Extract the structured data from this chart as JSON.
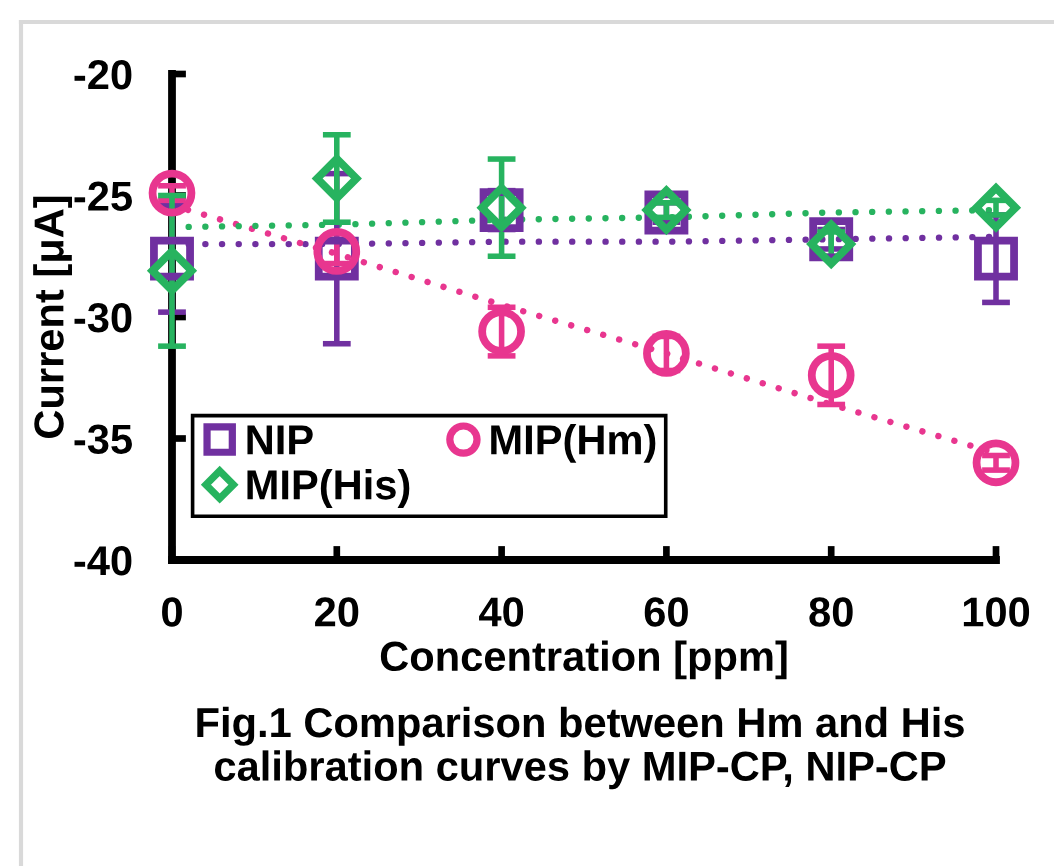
{
  "chart_data": {
    "type": "scatter",
    "xlabel": "Concentration [ppm]",
    "ylabel": "Current [μA]",
    "annotations": [
      "Fig.1 Comparison between Hm and His\ncalibration curves by MIP-CP, NIP-CP"
    ],
    "x": [
      0,
      20,
      40,
      60,
      80,
      100
    ],
    "xlim": [
      0,
      100
    ],
    "xticks": [
      0,
      20,
      40,
      60,
      80,
      100
    ],
    "ylim": [
      -40,
      -20
    ],
    "yticks": [
      -40,
      -35,
      -30,
      -25,
      -20
    ],
    "legend": "bottom left",
    "series": [
      {
        "name": "NIP",
        "color": "#7030a0",
        "marker": "square",
        "values": [
          -27.6,
          -27.6,
          -25.6,
          -25.7,
          -26.8,
          -27.6
        ],
        "errors": [
          2.2,
          3.5,
          0.8,
          0.4,
          0.4,
          1.8
        ]
      },
      {
        "name": "MIP(Hm)",
        "color": "#e8368f",
        "marker": "circle",
        "values": [
          -24.9,
          -27.3,
          -30.6,
          -31.5,
          -32.4,
          -36.0
        ],
        "errors": [
          0.3,
          0.5,
          1.0,
          0.7,
          1.2,
          0.3
        ]
      },
      {
        "name": "MIP(His)",
        "color": "#27b35f",
        "marker": "diamond",
        "values": [
          -28.1,
          -24.3,
          -25.5,
          -25.6,
          -27.0,
          -25.5
        ],
        "errors": [
          3.1,
          1.8,
          2.0,
          0.3,
          0.5,
          0.3
        ]
      },
      {
        "type": "line",
        "color": "#7030a0",
        "marker": "none",
        "line_style": "dotted",
        "values": [
          -27.0,
          -27.0,
          -26.9,
          -26.9,
          -26.8,
          -26.7
        ]
      },
      {
        "type": "line",
        "color": "#e8368f",
        "marker": "none",
        "line_style": "dotted",
        "values": [
          -25.4,
          -27.4,
          -29.5,
          -31.5,
          -33.6,
          -35.6
        ]
      },
      {
        "type": "line",
        "color": "#27b35f",
        "marker": "none",
        "line_style": "dotted",
        "values": [
          -26.3,
          -26.2,
          -26.0,
          -25.9,
          -25.7,
          -25.6
        ]
      }
    ]
  }
}
